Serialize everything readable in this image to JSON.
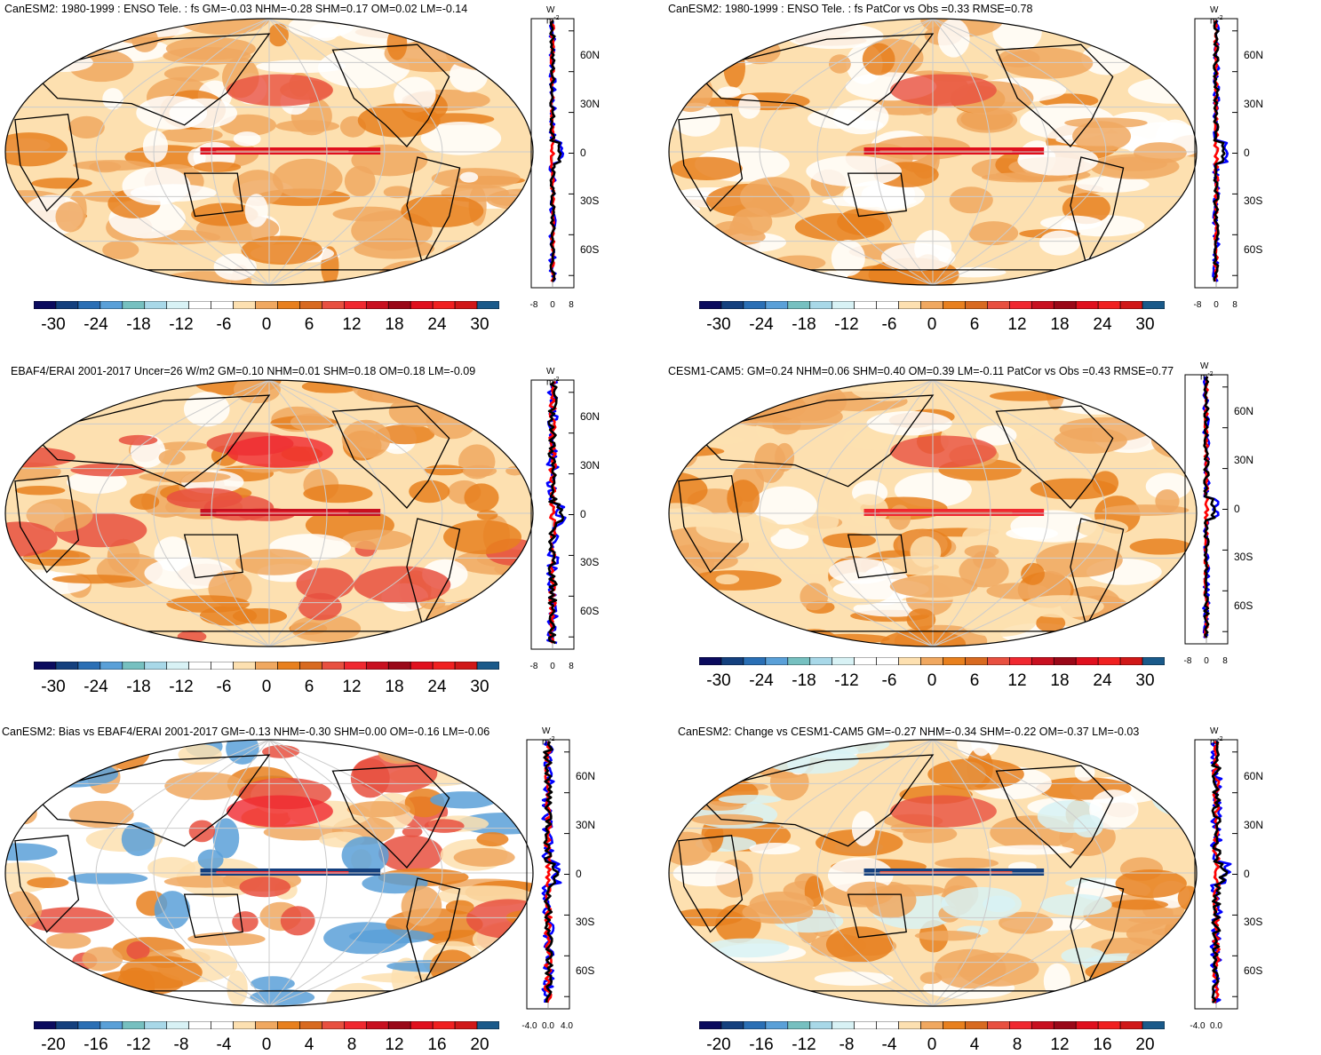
{
  "panels": [
    {
      "title": "CanESM2: 1980-1999 : ENSO Tele. : fs GM=-0.03 NHM=-0.28 SHM=0.17 OM=0.02 LM=-0.14",
      "colorbar_labels": [
        "-30",
        "-24",
        "-18",
        "-12",
        "-6",
        "0",
        "6",
        "12",
        "18",
        "24",
        "30"
      ],
      "units": "W m",
      "units_exp": "-2",
      "lat_labels": [
        "60N",
        "30N",
        "0",
        "30S",
        "60S"
      ],
      "x_labels": [
        "-8",
        "0",
        "8"
      ],
      "pattern": "model"
    },
    {
      "title": "CanESM2: 1980-1999 : ENSO Tele. : fs PatCor vs Obs =0.33 RMSE=0.78",
      "colorbar_labels": [
        "-30",
        "-24",
        "-18",
        "-12",
        "-6",
        "0",
        "6",
        "12",
        "18",
        "24",
        "30"
      ],
      "units": "W m",
      "units_exp": "-2",
      "lat_labels": [
        "60N",
        "30N",
        "0",
        "30S",
        "60S"
      ],
      "x_labels": [
        "-8",
        "0",
        "8"
      ],
      "pattern": "model"
    },
    {
      "title": "EBAF4/ERAI 2001-2017 Uncer=26 W/m2 GM=0.10 NHM=0.01 SHM=0.18 OM=0.18 LM=-0.09",
      "colorbar_labels": [
        "-30",
        "-24",
        "-18",
        "-12",
        "-6",
        "0",
        "6",
        "12",
        "18",
        "24",
        "30"
      ],
      "units": "W m",
      "units_exp": "-2",
      "lat_labels": [
        "60N",
        "30N",
        "0",
        "30S",
        "60S"
      ],
      "x_labels": [
        "-8",
        "0",
        "8"
      ],
      "pattern": "obs"
    },
    {
      "title": "CESM1-CAM5: GM=0.24 NHM=0.06 SHM=0.40 OM=0.39 LM=-0.11 PatCor vs Obs =0.43 RMSE=0.77",
      "colorbar_labels": [
        "-30",
        "-24",
        "-18",
        "-12",
        "-6",
        "0",
        "6",
        "12",
        "18",
        "24",
        "30"
      ],
      "units": "W m",
      "units_exp": "-2",
      "lat_labels": [
        "60N",
        "30N",
        "0",
        "30S",
        "60S"
      ],
      "x_labels": [
        "-8",
        "0",
        "8"
      ],
      "pattern": "cesm"
    },
    {
      "title": "CanESM2: Bias vs EBAF4/ERAI 2001-2017 GM=-0.13 NHM=-0.30 SHM=0.00 OM=-0.16 LM=-0.06",
      "colorbar_labels": [
        "-20",
        "-16",
        "-12",
        "-8",
        "-4",
        "0",
        "4",
        "8",
        "12",
        "16",
        "20"
      ],
      "units": "W m",
      "units_exp": "-2",
      "lat_labels": [
        "60N",
        "30N",
        "0",
        "30S",
        "60S"
      ],
      "x_labels": [
        "-4.0",
        "0.0",
        "4.0"
      ],
      "pattern": "bias"
    },
    {
      "title": "CanESM2: Change vs CESM1-CAM5 GM=-0.27 NHM=-0.34 SHM=-0.22 OM=-0.37 LM=-0.03",
      "colorbar_labels": [
        "-20",
        "-16",
        "-12",
        "-8",
        "-4",
        "0",
        "4",
        "8",
        "12",
        "16",
        "20"
      ],
      "units": "W m",
      "units_exp": "-2",
      "lat_labels": [
        "60N",
        "30N",
        "0",
        "30S",
        "60S"
      ],
      "x_labels": [
        "-4.0",
        "0.0"
      ],
      "pattern": "change"
    }
  ],
  "palette": [
    "#0b0b5e",
    "#14407e",
    "#2a6fb5",
    "#5aa0d8",
    "#76c0c0",
    "#a8d8e8",
    "#d8f2f5",
    "#ffffff",
    "#ffffff",
    "#fde0b0",
    "#f0a860",
    "#e8801e",
    "#d86a20",
    "#e85040",
    "#f02830",
    "#c81020",
    "#9a0818",
    "#e0101e",
    "#f02020",
    "#d01818",
    "#1a5a8a"
  ],
  "line_colors": {
    "model": "#000000",
    "obs_blue": "#0000ff",
    "ocean_red": "#ff0000"
  }
}
